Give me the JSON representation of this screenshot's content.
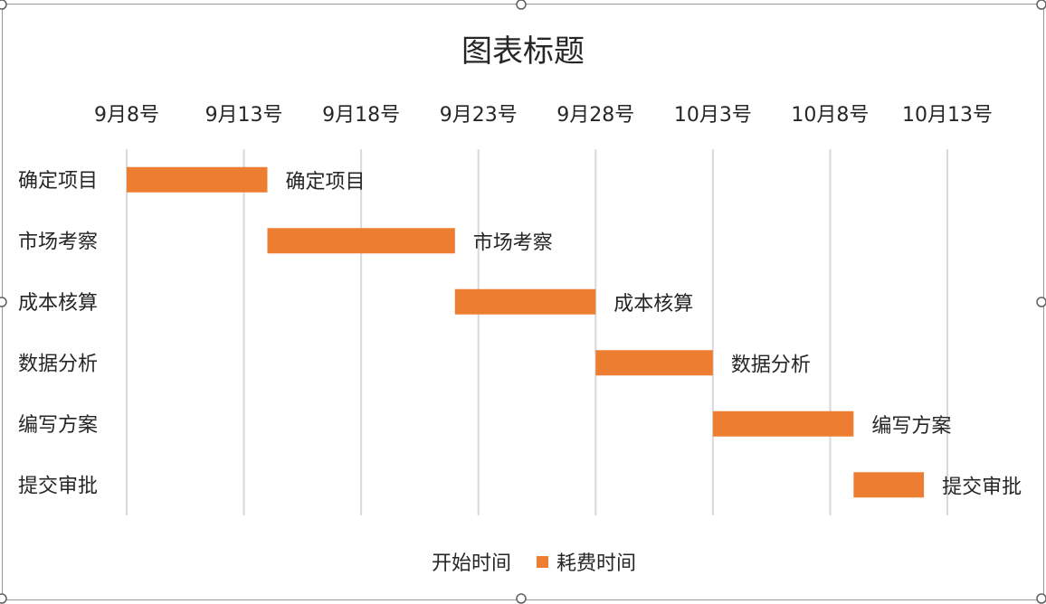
{
  "chart_data": {
    "type": "bar",
    "orientation": "horizontal",
    "stacked": true,
    "title": "图表标题",
    "x_axis_position": "top",
    "x_tick_labels": [
      "9月8号",
      "9月13号",
      "9月18号",
      "9月23号",
      "9月28号",
      "10月3号",
      "10月8号",
      "10月13号"
    ],
    "x_ticks": [
      "2023-09-08",
      "2023-09-13",
      "2023-09-18",
      "2023-09-23",
      "2023-09-28",
      "2023-10-03",
      "2023-10-08",
      "2023-10-13"
    ],
    "xlim": [
      "2023-09-08",
      "2023-10-13"
    ],
    "categories": [
      "确定项目",
      "市场考察",
      "成本核算",
      "数据分析",
      "编写方案",
      "提交审批"
    ],
    "series": [
      {
        "name": "开始时间",
        "visible": false,
        "values": [
          "2023-09-08",
          "2023-09-14",
          "2023-09-22",
          "2023-09-28",
          "2023-10-03",
          "2023-10-09"
        ]
      },
      {
        "name": "耗费时间",
        "color": "#ED7D31",
        "unit": "days",
        "values": [
          6,
          8,
          6,
          5,
          6,
          3
        ]
      }
    ],
    "data_labels": [
      "确定项目",
      "市场考察",
      "成本核算",
      "数据分析",
      "编写方案",
      "提交审批"
    ],
    "grid": true,
    "legend_position": "bottom"
  }
}
